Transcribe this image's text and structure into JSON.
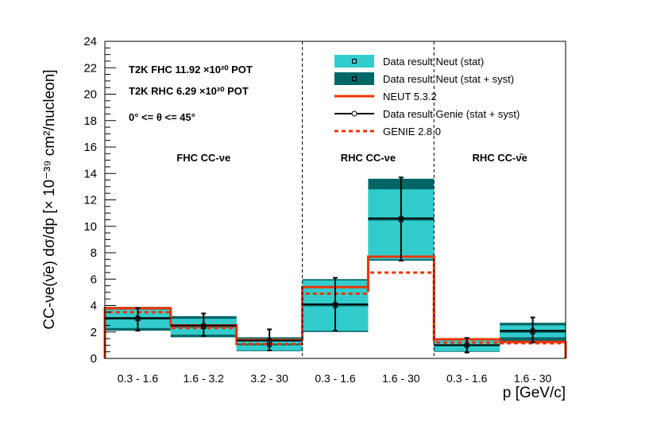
{
  "chart_data": {
    "type": "bar",
    "ylim": [
      0,
      24
    ],
    "yticks": [
      "0",
      "2",
      "4",
      "6",
      "8",
      "10",
      "12",
      "14",
      "16",
      "18",
      "20",
      "22",
      "24"
    ],
    "ylabel": "CC-νe(ν̄e) dσ/dp [× 10⁻³⁹ cm²/nucleon]",
    "xlabel": "p [GeV/c]",
    "categories": [
      "0.3 - 1.6",
      "1.6 - 3.2",
      "3.2 - 30",
      "0.3 - 1.6",
      "1.6 - 30",
      "0.3 - 1.6",
      "1.6 - 30"
    ],
    "regions": [
      {
        "label": "FHC CC-νe",
        "bins": [
          0,
          1,
          2
        ]
      },
      {
        "label": "RHC CC-νe",
        "bins": [
          3,
          4
        ]
      },
      {
        "label": "RHC CC-ν̄e",
        "bins": [
          5,
          6
        ]
      }
    ],
    "annotations": {
      "line1": "T2K FHC 11.92 ×10²⁰ POT",
      "line2": "T2K RHC  6.29 ×10²⁰ POT",
      "line3": "0° <= θ <= 45°"
    },
    "colors": {
      "stat": "#33cccc",
      "syst": "#006666",
      "neut": "#ee3300",
      "genie": "#000000",
      "genie_mc": "#ee3300"
    },
    "series": [
      {
        "name": "Data result Neut (stat)",
        "center": [
          3.0,
          2.4,
          1.05,
          4.0,
          10.5,
          1.0,
          2.0
        ],
        "low": [
          2.3,
          1.8,
          0.6,
          2.1,
          7.5,
          0.55,
          1.6
        ],
        "high": [
          3.7,
          3.0,
          1.5,
          5.9,
          12.8,
          1.45,
          2.5
        ]
      },
      {
        "name": "Data result Neut (stat + syst)",
        "low": [
          2.1,
          1.6,
          0.55,
          2.0,
          7.4,
          0.5,
          1.3
        ],
        "high": [
          3.9,
          3.2,
          1.6,
          6.0,
          13.6,
          1.5,
          2.7
        ]
      },
      {
        "name": "NEUT 5.3.2",
        "values": [
          3.8,
          2.5,
          1.4,
          5.4,
          7.7,
          1.45,
          1.25
        ]
      },
      {
        "name": "Data result Genie (stat + syst)",
        "center": [
          3.05,
          2.5,
          1.35,
          4.1,
          10.6,
          1.0,
          2.1
        ],
        "low": [
          2.1,
          1.7,
          0.6,
          2.1,
          7.4,
          0.45,
          1.2
        ],
        "high": [
          3.8,
          3.4,
          2.2,
          6.1,
          13.7,
          1.55,
          3.1
        ]
      },
      {
        "name": "GENIE 2.8.0",
        "values": [
          3.5,
          2.3,
          1.1,
          4.9,
          6.5,
          1.2,
          1.15
        ]
      }
    ],
    "legend": [
      {
        "key": "stat",
        "label": "Data result Neut (stat)"
      },
      {
        "key": "syst",
        "label": "Data result Neut (stat + syst)"
      },
      {
        "key": "neut",
        "label": "NEUT 5.3.2"
      },
      {
        "key": "genie",
        "label": "Data result Genie (stat + syst)"
      },
      {
        "key": "genie_mc",
        "label": "GENIE 2.8.0"
      }
    ],
    "legend_position": "top-right",
    "grid": false
  }
}
